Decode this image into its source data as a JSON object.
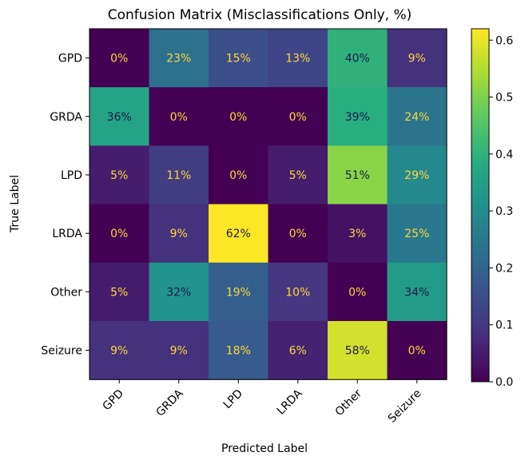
{
  "chart_data": {
    "type": "heatmap",
    "title": "Confusion Matrix (Misclassifications Only, %)",
    "xlabel": "Predicted Label",
    "ylabel": "True Label",
    "x_categories": [
      "GPD",
      "GRDA",
      "LPD",
      "LRDA",
      "Other",
      "Seizure"
    ],
    "y_categories": [
      "GPD",
      "GRDA",
      "LPD",
      "LRDA",
      "Other",
      "Seizure"
    ],
    "values": [
      [
        0.0,
        0.23,
        0.15,
        0.13,
        0.4,
        0.09
      ],
      [
        0.36,
        0.0,
        0.0,
        0.0,
        0.39,
        0.24
      ],
      [
        0.05,
        0.11,
        0.0,
        0.05,
        0.51,
        0.29
      ],
      [
        0.0,
        0.09,
        0.62,
        0.0,
        0.03,
        0.25
      ],
      [
        0.05,
        0.32,
        0.19,
        0.1,
        0.0,
        0.34
      ],
      [
        0.09,
        0.09,
        0.18,
        0.06,
        0.58,
        0.0
      ]
    ],
    "cell_labels": [
      [
        "0%",
        "23%",
        "15%",
        "13%",
        "40%",
        "9%"
      ],
      [
        "36%",
        "0%",
        "0%",
        "0%",
        "39%",
        "24%"
      ],
      [
        "5%",
        "11%",
        "0%",
        "5%",
        "51%",
        "29%"
      ],
      [
        "0%",
        "9%",
        "62%",
        "0%",
        "3%",
        "25%"
      ],
      [
        "5%",
        "32%",
        "19%",
        "10%",
        "0%",
        "34%"
      ],
      [
        "9%",
        "9%",
        "18%",
        "6%",
        "58%",
        "0%"
      ]
    ],
    "colormap": "viridis",
    "colorbar": {
      "range": [
        0,
        0.62
      ],
      "ticks": [
        0.0,
        0.1,
        0.2,
        0.3,
        0.4,
        0.5,
        0.6
      ],
      "tick_labels": [
        "0.0",
        "0.1",
        "0.2",
        "0.3",
        "0.4",
        "0.5",
        "0.6"
      ]
    },
    "text_colors": {
      "on_dark": "#ffd83a",
      "on_light": "#1a1a4a"
    }
  }
}
